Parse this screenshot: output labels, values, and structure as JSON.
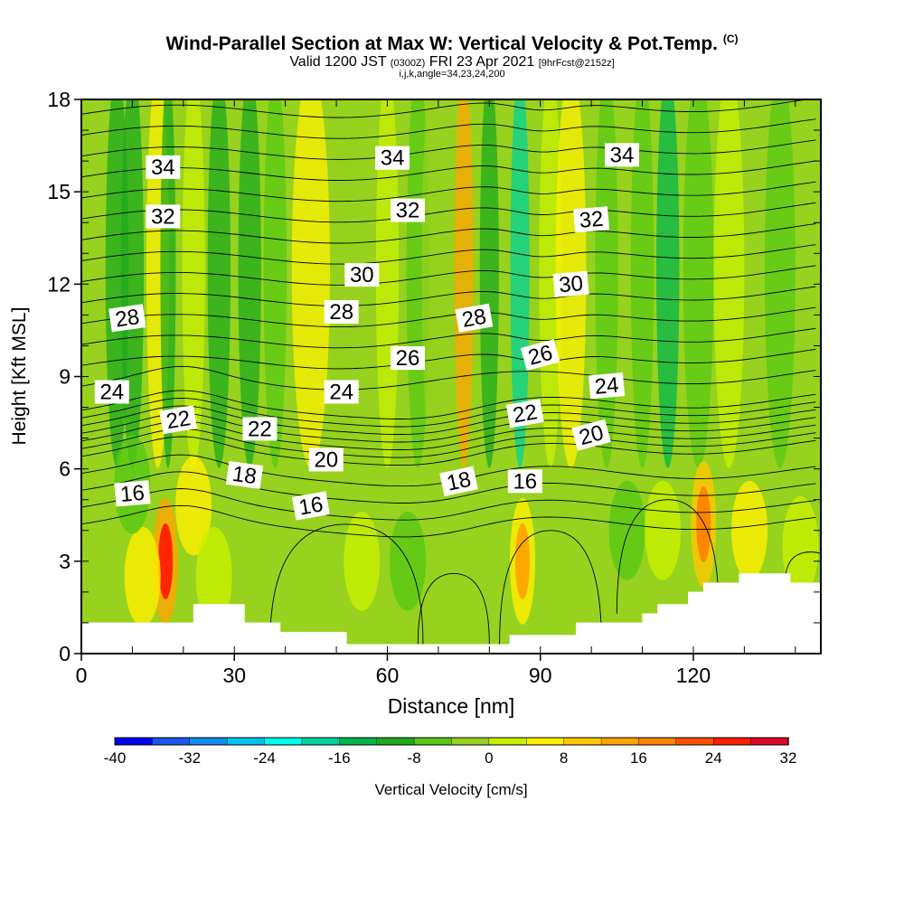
{
  "titles": {
    "main": "Wind-Parallel Section at Max W: Vertical Velocity & Pot.Temp.",
    "copyright": "(C)",
    "valid_prefix": "Valid 1200 JST",
    "utc": "(0300Z)",
    "valid_date": "FRI 23 Apr 2021",
    "forecast": "[9hrFcst@2152z]",
    "params": "i,j,k,angle=34,23,24,200"
  },
  "chart_data": {
    "type": "heatmap",
    "title": "Wind-Parallel Section at Max W: Vertical Velocity & Pot.Temp.",
    "xlabel": "Distance [nm]",
    "ylabel": "Height [Kft MSL]",
    "xlim": [
      0,
      145
    ],
    "ylim": [
      0,
      18
    ],
    "x_ticks": [
      "0",
      "30",
      "60",
      "90",
      "120"
    ],
    "y_ticks": [
      "0",
      "3",
      "6",
      "9",
      "12",
      "15",
      "18"
    ],
    "colorbar": {
      "label": "Vertical Velocity [cm/s]",
      "min": -40,
      "max": 32,
      "step": 4,
      "tick_labels": [
        "-40",
        "-32",
        "-24",
        "-16",
        "-8",
        "0",
        "8",
        "16",
        "24",
        "32"
      ],
      "colors": [
        "#0000ee",
        "#1a57ee",
        "#0f8ff0",
        "#00c4ee",
        "#00ffee",
        "#00d29a",
        "#00b64e",
        "#1eaa1e",
        "#58c814",
        "#96d21e",
        "#c8f000",
        "#fff000",
        "#ffc800",
        "#ffa500",
        "#ff8200",
        "#ff5000",
        "#ff1e00",
        "#dc0a28",
        "#b41450",
        "#960a6e",
        "#6e0a8c"
      ]
    },
    "wind_bands": [
      {
        "x": 7,
        "w": 3,
        "v": -9
      },
      {
        "x": 10,
        "w": 3,
        "v": -12
      },
      {
        "x": 15,
        "w": 3,
        "v": 5
      },
      {
        "x": 17,
        "w": 2,
        "v": -11
      },
      {
        "x": 22,
        "w": 3,
        "v": 3
      },
      {
        "x": 27,
        "w": 3,
        "v": -9
      },
      {
        "x": 33,
        "w": 3,
        "v": -12
      },
      {
        "x": 38,
        "w": 3,
        "v": -6
      },
      {
        "x": 45,
        "w": 5,
        "v": 4
      },
      {
        "x": 52,
        "w": 4,
        "v": -4
      },
      {
        "x": 60,
        "w": 3,
        "v": 3
      },
      {
        "x": 66,
        "w": 3,
        "v": -7
      },
      {
        "x": 69,
        "w": 3,
        "v": -3
      },
      {
        "x": 75,
        "w": 2.5,
        "v": 14
      },
      {
        "x": 80,
        "w": 2.5,
        "v": -9
      },
      {
        "x": 86,
        "w": 2.5,
        "v": -19
      },
      {
        "x": 92,
        "w": 3,
        "v": 3
      },
      {
        "x": 96,
        "w": 4,
        "v": 6
      },
      {
        "x": 103,
        "w": 3,
        "v": -6
      },
      {
        "x": 110,
        "w": 3,
        "v": -8
      },
      {
        "x": 115,
        "w": 3,
        "v": -13
      },
      {
        "x": 121,
        "w": 4,
        "v": -6
      },
      {
        "x": 127,
        "w": 4,
        "v": 3
      },
      {
        "x": 137,
        "w": 4,
        "v": -5
      }
    ],
    "low_cells": [
      {
        "x": 16.5,
        "y": 3,
        "v": 24
      },
      {
        "x": 12,
        "y": 2.5,
        "v": 9
      },
      {
        "x": 10,
        "y": 5.5,
        "v": -12
      },
      {
        "x": 22,
        "y": 4.8,
        "v": 9
      },
      {
        "x": 26,
        "y": 2.5,
        "v": 5
      },
      {
        "x": 34,
        "y": 3,
        "v": -5
      },
      {
        "x": 42,
        "y": 3.5,
        "v": -6
      },
      {
        "x": 55,
        "y": 3,
        "v": 3
      },
      {
        "x": 64,
        "y": 3,
        "v": -9
      },
      {
        "x": 72,
        "y": 3,
        "v": -5
      },
      {
        "x": 80,
        "y": 3.5,
        "v": -6
      },
      {
        "x": 86.5,
        "y": 3,
        "v": 13
      },
      {
        "x": 98,
        "y": 3.5,
        "v": -6
      },
      {
        "x": 107,
        "y": 4,
        "v": -9
      },
      {
        "x": 114,
        "y": 4,
        "v": 5
      },
      {
        "x": 122,
        "y": 4.2,
        "v": 18
      },
      {
        "x": 131,
        "y": 4,
        "v": 7
      },
      {
        "x": 141,
        "y": 3.5,
        "v": 4
      }
    ],
    "terrain": [
      [
        0,
        1
      ],
      [
        22,
        1
      ],
      [
        22,
        1.6
      ],
      [
        32,
        1.6
      ],
      [
        32,
        1
      ],
      [
        39,
        1
      ],
      [
        39,
        0.7
      ],
      [
        52,
        0.7
      ],
      [
        52,
        0.3
      ],
      [
        84,
        0.3
      ],
      [
        84,
        0.6
      ],
      [
        97,
        0.6
      ],
      [
        97,
        1
      ],
      [
        110,
        1
      ],
      [
        110,
        1.3
      ],
      [
        113,
        1.3
      ],
      [
        113,
        1.6
      ],
      [
        119,
        1.6
      ],
      [
        119,
        2
      ],
      [
        122,
        2
      ],
      [
        122,
        2.3
      ],
      [
        129,
        2.3
      ],
      [
        129,
        2.6
      ],
      [
        139,
        2.6
      ],
      [
        139,
        2.3
      ],
      [
        145,
        2.3
      ]
    ],
    "theta_contours": {
      "levels": [
        16,
        17,
        18,
        19,
        20,
        20.5,
        21,
        21.5,
        22,
        22.5,
        23,
        24,
        25,
        26,
        27,
        28,
        29,
        30,
        31,
        32,
        33,
        34,
        35,
        36,
        37
      ],
      "labels": [
        {
          "text": "34",
          "x": 16,
          "y": 15.8,
          "rot": 0
        },
        {
          "text": "34",
          "x": 61,
          "y": 16.1,
          "rot": 0
        },
        {
          "text": "34",
          "x": 106,
          "y": 16.2,
          "rot": 0
        },
        {
          "text": "32",
          "x": 16,
          "y": 14.2,
          "rot": 0
        },
        {
          "text": "32",
          "x": 64,
          "y": 14.4,
          "rot": 0
        },
        {
          "text": "32",
          "x": 100,
          "y": 14.1,
          "rot": -5
        },
        {
          "text": "30",
          "x": 55,
          "y": 12.3,
          "rot": 0
        },
        {
          "text": "30",
          "x": 96,
          "y": 12.0,
          "rot": -5
        },
        {
          "text": "28",
          "x": 9,
          "y": 10.9,
          "rot": -8
        },
        {
          "text": "28",
          "x": 51,
          "y": 11.1,
          "rot": 0
        },
        {
          "text": "28",
          "x": 77,
          "y": 10.9,
          "rot": -10
        },
        {
          "text": "26",
          "x": 64,
          "y": 9.6,
          "rot": 0
        },
        {
          "text": "26",
          "x": 90,
          "y": 9.7,
          "rot": -15
        },
        {
          "text": "24",
          "x": 6,
          "y": 8.5,
          "rot": 0
        },
        {
          "text": "24",
          "x": 51,
          "y": 8.5,
          "rot": 0
        },
        {
          "text": "24",
          "x": 103,
          "y": 8.7,
          "rot": -5
        },
        {
          "text": "22",
          "x": 19,
          "y": 7.6,
          "rot": -10
        },
        {
          "text": "22",
          "x": 35,
          "y": 7.3,
          "rot": 0
        },
        {
          "text": "22",
          "x": 87,
          "y": 7.8,
          "rot": -10
        },
        {
          "text": "20",
          "x": 48,
          "y": 6.3,
          "rot": 0
        },
        {
          "text": "20",
          "x": 100,
          "y": 7.1,
          "rot": -15
        },
        {
          "text": "18",
          "x": 32,
          "y": 5.8,
          "rot": 8
        },
        {
          "text": "18",
          "x": 74,
          "y": 5.6,
          "rot": -12
        },
        {
          "text": "16",
          "x": 10,
          "y": 5.2,
          "rot": -5
        },
        {
          "text": "16",
          "x": 45,
          "y": 4.8,
          "rot": -10
        },
        {
          "text": "16",
          "x": 87,
          "y": 5.6,
          "rot": 0
        }
      ]
    }
  }
}
